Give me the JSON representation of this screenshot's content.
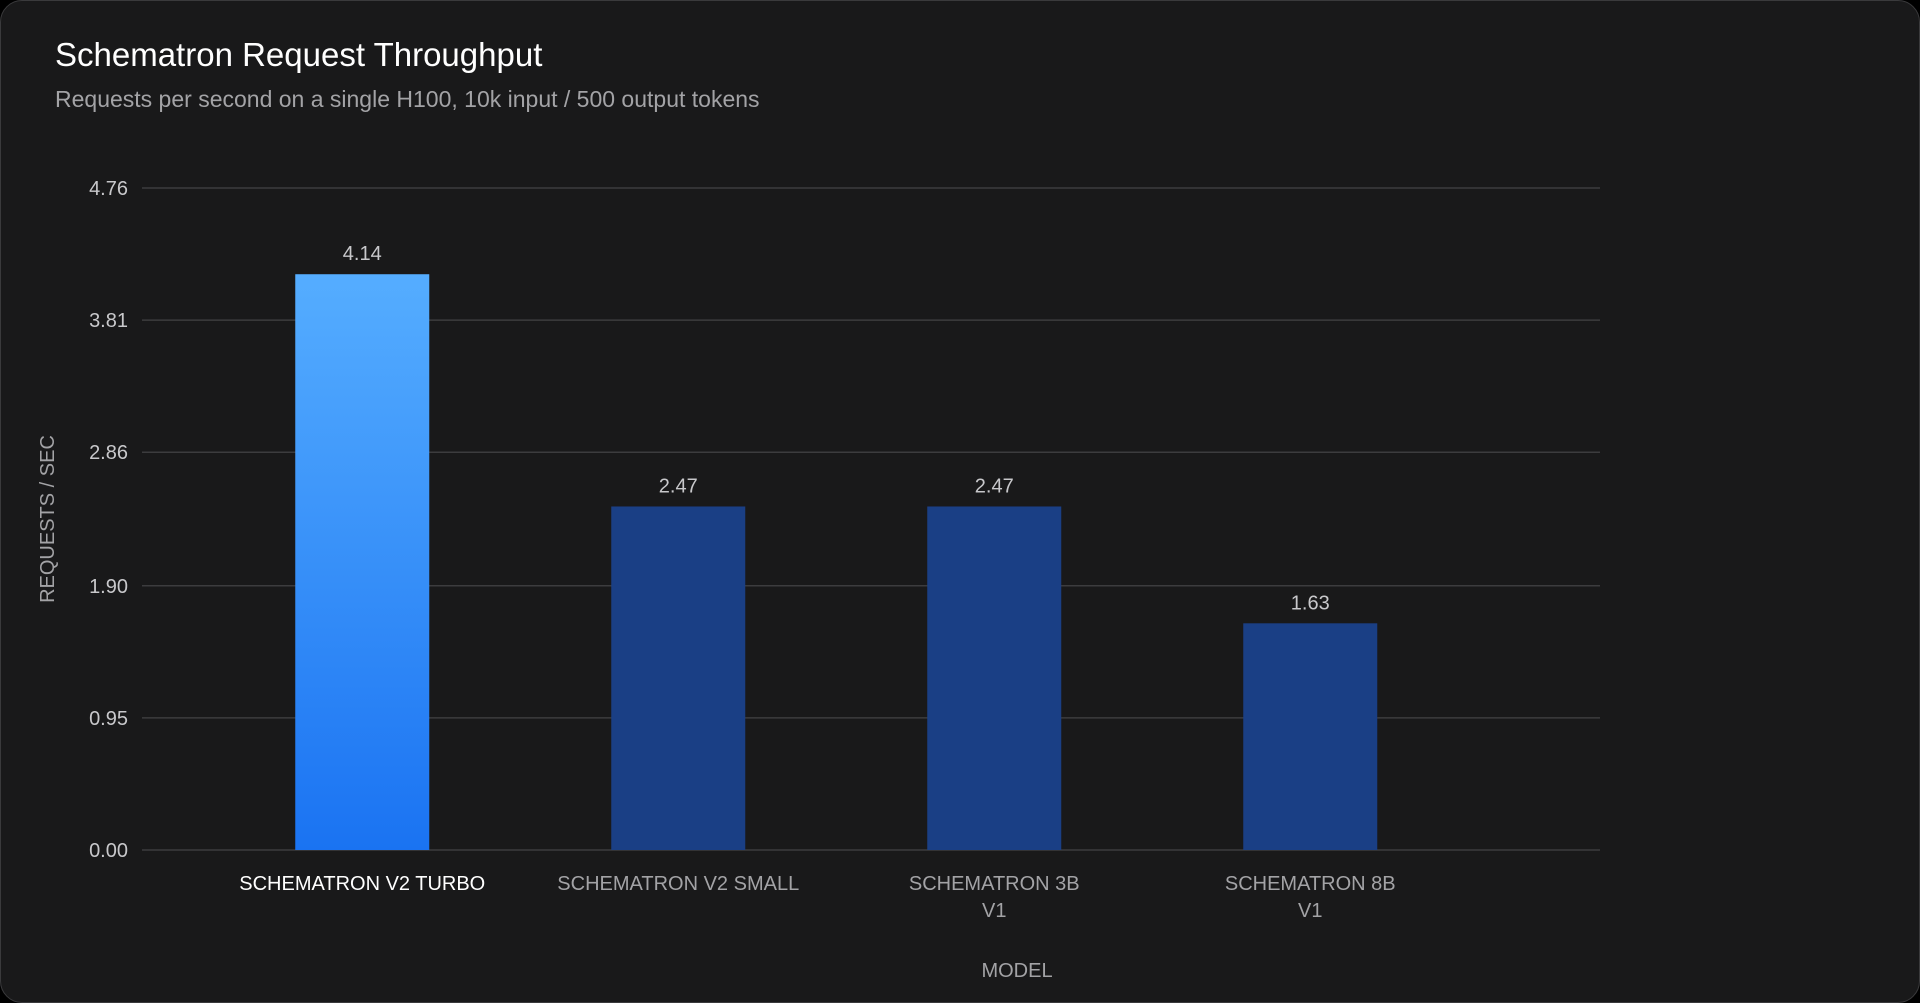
{
  "header": {
    "title": "Schematron Request Throughput",
    "subtitle": "Requests per second on a single H100, 10k input / 500 output tokens"
  },
  "colors": {
    "background": "#19191a",
    "grid": "#3c3c3e",
    "highlight_top": "#55adff",
    "highlight_bottom": "#1a73f2",
    "bar": "#1a3f85"
  },
  "chart_data": {
    "type": "bar",
    "categories": [
      [
        "SCHEMATRON V2 TURBO"
      ],
      [
        "SCHEMATRON V2 SMALL"
      ],
      [
        "SCHEMATRON 3B",
        "V1"
      ],
      [
        "SCHEMATRON 8B",
        "V1"
      ]
    ],
    "values": [
      4.14,
      2.47,
      2.47,
      1.63
    ],
    "value_labels": [
      "4.14",
      "2.47",
      "2.47",
      "1.63"
    ],
    "highlighted_index": 0,
    "xlabel": "MODEL",
    "ylabel": "REQUESTS / SEC",
    "ylim": [
      0,
      4.76
    ],
    "yticks": [
      0,
      0.95,
      1.9,
      2.86,
      3.81,
      4.76
    ],
    "ytick_labels": [
      "0.00",
      "0.95",
      "1.90",
      "2.86",
      "3.81",
      "4.76"
    ],
    "grid": true,
    "legend": false
  }
}
